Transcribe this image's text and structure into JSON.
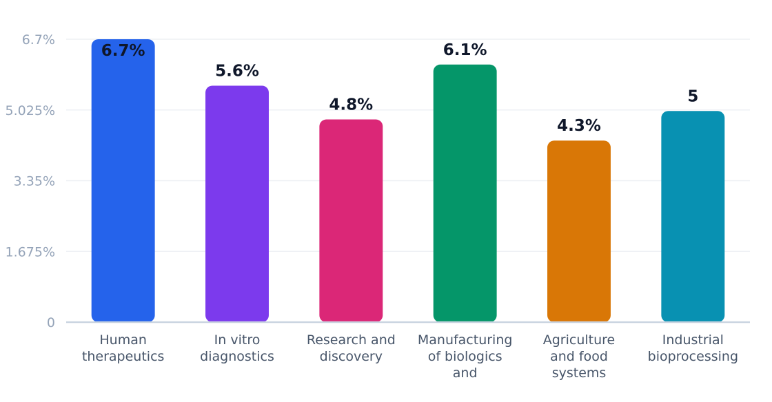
{
  "chart_data": {
    "type": "bar",
    "categories": [
      [
        "Human",
        "therapeutics"
      ],
      [
        "In vitro",
        "diagnostics"
      ],
      [
        "Research and",
        "discovery"
      ],
      [
        "Manufacturing",
        "of biologics",
        "and"
      ],
      [
        "Agriculture",
        "and food",
        "systems"
      ],
      [
        "Industrial",
        "bioprocessing"
      ]
    ],
    "values": [
      6.7,
      5.6,
      4.8,
      6.1,
      4.3,
      5.0
    ],
    "value_labels": [
      "6.7%",
      "5.6%",
      "4.8%",
      "6.1%",
      "4.3%",
      "5"
    ],
    "colors": [
      "#2563eb",
      "#7c3aed",
      "#db2777",
      "#059669",
      "#d97706",
      "#0891b2"
    ],
    "yticks": [
      "0",
      "1.675%",
      "3.35%",
      "5.025%",
      "6.7%"
    ],
    "ytick_values": [
      0,
      1.675,
      3.35,
      5.025,
      6.7
    ],
    "ylim": [
      0,
      6.7
    ],
    "grid": true
  }
}
